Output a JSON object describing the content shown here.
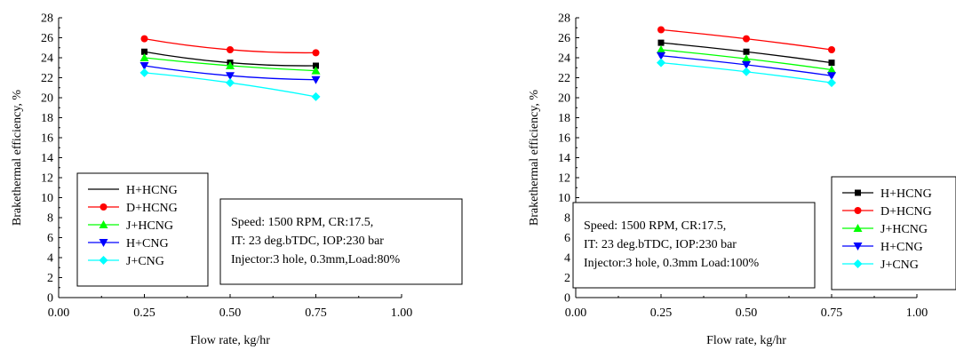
{
  "chart_data": [
    {
      "type": "line",
      "xlabel": "Flow rate, kg/hr",
      "ylabel": "Brakethermal efficiency, %",
      "xlim": [
        0.0,
        1.0
      ],
      "ylim": [
        0,
        28
      ],
      "xticks": [
        "0.00",
        "0.25",
        "0.50",
        "0.75",
        "1.00"
      ],
      "yticks": [
        "0",
        "2",
        "4",
        "6",
        "8",
        "10",
        "12",
        "14",
        "16",
        "18",
        "20",
        "22",
        "24",
        "26",
        "28"
      ],
      "x": [
        0.25,
        0.5,
        0.75
      ],
      "series": [
        {
          "name": "H+HCNG",
          "values": [
            24.6,
            23.5,
            23.2
          ],
          "color": "#000000",
          "marker": "square"
        },
        {
          "name": "D+HCNG",
          "values": [
            25.9,
            24.8,
            24.5
          ],
          "color": "#ff0000",
          "marker": "circle"
        },
        {
          "name": "J+HCNG",
          "values": [
            24.0,
            23.2,
            22.7
          ],
          "color": "#00ff00",
          "marker": "triangle-up"
        },
        {
          "name": "H+CNG",
          "values": [
            23.2,
            22.2,
            21.8
          ],
          "color": "#0000ff",
          "marker": "triangle-down"
        },
        {
          "name": "J+CNG",
          "values": [
            22.5,
            21.5,
            20.1
          ],
          "color": "#00ffff",
          "marker": "diamond"
        }
      ],
      "legend_position": "bottom-left",
      "annotation": [
        "Speed: 1500 RPM, CR:17.5,",
        "IT: 23 deg.bTDC, IOP:230 bar",
        "Injector:3 hole, 0.3mm,Load:80%"
      ]
    },
    {
      "type": "line",
      "xlabel": "Flow rate, kg/hr",
      "ylabel": "Brakethermal efficiency, %",
      "xlim": [
        0.0,
        1.0
      ],
      "ylim": [
        0,
        28
      ],
      "xticks": [
        "0.00",
        "0.25",
        "0.50",
        "0.75",
        "1.00"
      ],
      "yticks": [
        "0",
        "2",
        "4",
        "6",
        "8",
        "10",
        "12",
        "14",
        "16",
        "18",
        "20",
        "22",
        "24",
        "26",
        "28"
      ],
      "x": [
        0.25,
        0.5,
        0.75
      ],
      "series": [
        {
          "name": "H+HCNG",
          "values": [
            25.5,
            24.6,
            23.5
          ],
          "color": "#000000",
          "marker": "square"
        },
        {
          "name": "D+HCNG",
          "values": [
            26.8,
            25.9,
            24.8
          ],
          "color": "#ff0000",
          "marker": "circle"
        },
        {
          "name": "J+HCNG",
          "values": [
            24.8,
            23.9,
            22.8
          ],
          "color": "#00ff00",
          "marker": "triangle-up"
        },
        {
          "name": "H+CNG",
          "values": [
            24.2,
            23.3,
            22.2
          ],
          "color": "#0000ff",
          "marker": "triangle-down"
        },
        {
          "name": "J+CNG",
          "values": [
            23.5,
            22.6,
            21.5
          ],
          "color": "#00ffff",
          "marker": "diamond"
        }
      ],
      "legend_position": "bottom-right",
      "annotation": [
        "Speed: 1500 RPM, CR:17.5,",
        "IT: 23 deg.bTDC, IOP:230 bar",
        "Injector:3 hole, 0.3mm Load:100%"
      ]
    }
  ]
}
